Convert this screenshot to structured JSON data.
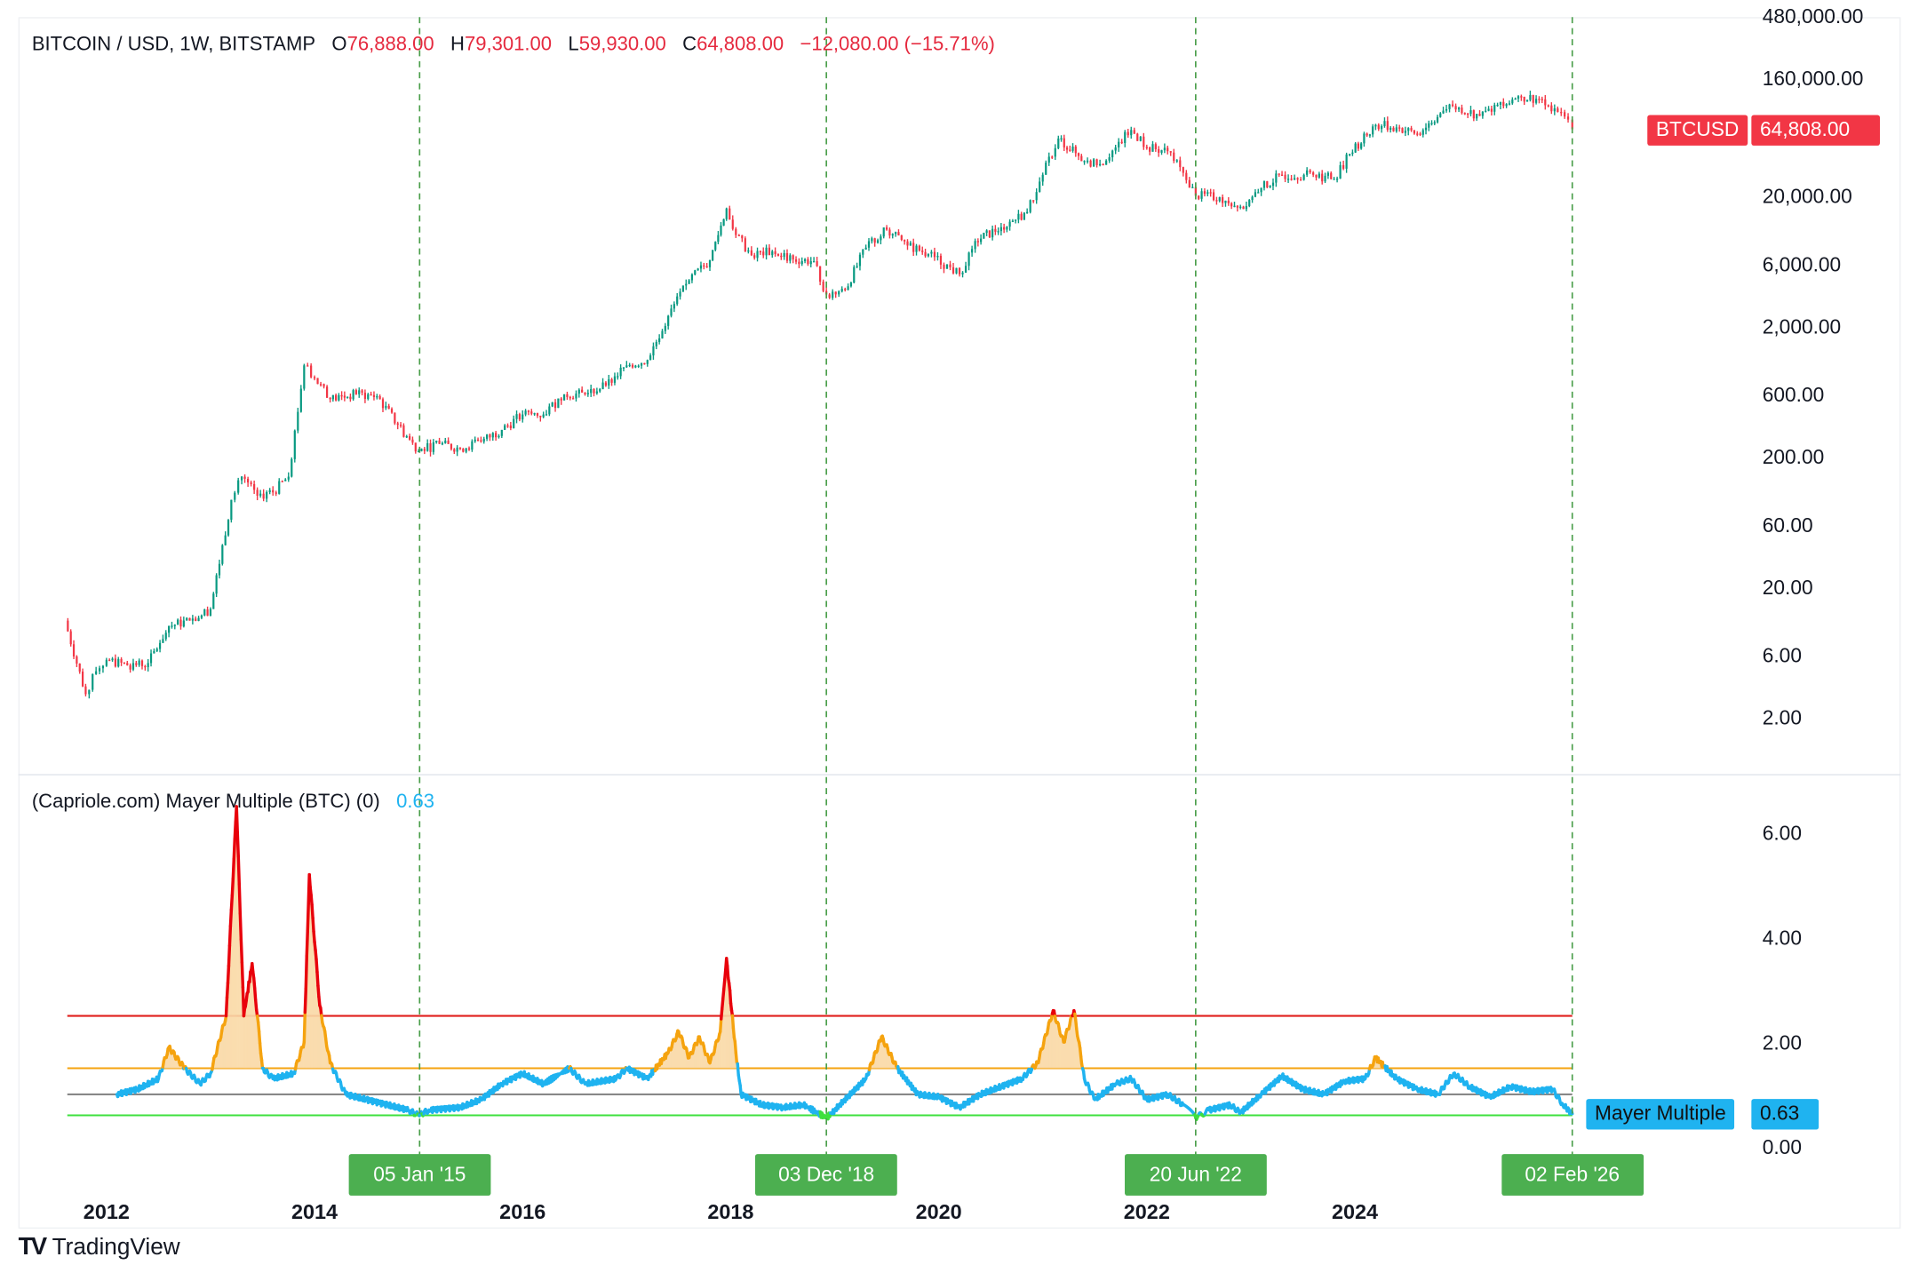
{
  "header": {
    "symbol": "BITCOIN / USD, 1W, BITSTAMP",
    "o_label": "O",
    "open": "76,888.00",
    "h_label": "H",
    "high": "79,301.00",
    "l_label": "L",
    "low": "59,930.00",
    "c_label": "C",
    "close": "64,808.00",
    "change": "−12,080.00 (−15.71%)"
  },
  "price_label": {
    "name": "BTCUSD",
    "value": "64,808.00",
    "color": "#f23645"
  },
  "indicator": {
    "title": "(Capriole.com) Mayer Multiple (BTC) (0)",
    "value": "0.63",
    "label_name": "Mayer Multiple",
    "label_value": "0.63",
    "color": "#1fb3f0"
  },
  "brand": "TradingView",
  "colors": {
    "up": "#089981",
    "down": "#f23645",
    "mm_normal": "#1fb3f0",
    "mm_orange": "#f5a30f",
    "mm_red": "#e8000b",
    "mm_green": "#3ee03e",
    "vline": "#4a9e4a",
    "tag": "#4caf50"
  },
  "chart_data": [
    {
      "type": "candlestick",
      "scale": "log",
      "x_ticks": [
        "2012",
        "2014",
        "2016",
        "2018",
        "2020",
        "2022",
        "2024"
      ],
      "y_ticks": [
        "480,000.00",
        "160,000.00",
        "20,000.00",
        "6,000.00",
        "2,000.00",
        "600.00",
        "200.00",
        "60.00",
        "20.00",
        "6.00",
        "2.00"
      ],
      "y_tick_values": [
        480000,
        160000,
        20000,
        6000,
        2000,
        600,
        200,
        60,
        20,
        6,
        2
      ],
      "approx_closes": [
        [
          2011.6,
          11
        ],
        [
          2011.8,
          3
        ],
        [
          2011.9,
          4.5
        ],
        [
          2012.0,
          5.5
        ],
        [
          2012.2,
          5
        ],
        [
          2012.4,
          5.2
        ],
        [
          2012.6,
          10
        ],
        [
          2012.8,
          11
        ],
        [
          2013.0,
          13.5
        ],
        [
          2013.2,
          93
        ],
        [
          2013.3,
          140
        ],
        [
          2013.45,
          100
        ],
        [
          2013.6,
          106
        ],
        [
          2013.75,
          140
        ],
        [
          2013.9,
          1000
        ],
        [
          2014.0,
          800
        ],
        [
          2014.15,
          550
        ],
        [
          2014.4,
          600
        ],
        [
          2014.6,
          580
        ],
        [
          2014.8,
          350
        ],
        [
          2015.0,
          220
        ],
        [
          2015.2,
          250
        ],
        [
          2015.4,
          230
        ],
        [
          2015.6,
          260
        ],
        [
          2015.8,
          320
        ],
        [
          2016.0,
          420
        ],
        [
          2016.2,
          420
        ],
        [
          2016.4,
          600
        ],
        [
          2016.6,
          600
        ],
        [
          2016.8,
          700
        ],
        [
          2017.0,
          1000
        ],
        [
          2017.2,
          1100
        ],
        [
          2017.4,
          2400
        ],
        [
          2017.6,
          4500
        ],
        [
          2017.8,
          6400
        ],
        [
          2017.96,
          16000
        ],
        [
          2018.05,
          10000
        ],
        [
          2018.2,
          7000
        ],
        [
          2018.4,
          7500
        ],
        [
          2018.6,
          6500
        ],
        [
          2018.8,
          6300
        ],
        [
          2018.92,
          3500
        ],
        [
          2019.1,
          3800
        ],
        [
          2019.3,
          8000
        ],
        [
          2019.5,
          11000
        ],
        [
          2019.7,
          8300
        ],
        [
          2019.9,
          7200
        ],
        [
          2020.2,
          5000
        ],
        [
          2020.35,
          9000
        ],
        [
          2020.6,
          11500
        ],
        [
          2020.85,
          15000
        ],
        [
          2021.0,
          29000
        ],
        [
          2021.15,
          55000
        ],
        [
          2021.4,
          37000
        ],
        [
          2021.55,
          35000
        ],
        [
          2021.7,
          47000
        ],
        [
          2021.85,
          64000
        ],
        [
          2022.0,
          47000
        ],
        [
          2022.2,
          44000
        ],
        [
          2022.35,
          30000
        ],
        [
          2022.47,
          20000
        ],
        [
          2022.7,
          19500
        ],
        [
          2022.9,
          16500
        ],
        [
          2023.1,
          23000
        ],
        [
          2023.3,
          29000
        ],
        [
          2023.6,
          29000
        ],
        [
          2023.8,
          27000
        ],
        [
          2023.95,
          42000
        ],
        [
          2024.2,
          70000
        ],
        [
          2024.4,
          67000
        ],
        [
          2024.6,
          60000
        ],
        [
          2024.85,
          90000
        ],
        [
          2025.0,
          95000
        ],
        [
          2025.2,
          82000
        ],
        [
          2025.4,
          105000
        ],
        [
          2025.6,
          115000
        ],
        [
          2025.8,
          110000
        ],
        [
          2025.95,
          88000
        ],
        [
          2026.05,
          76888
        ],
        [
          2026.09,
          64808
        ]
      ]
    },
    {
      "type": "line",
      "title": "(Capriole.com) Mayer Multiple (BTC) (0)",
      "y_ticks": [
        "6.00",
        "4.00",
        "2.00",
        "0.00"
      ],
      "y_tick_values": [
        6,
        4,
        2,
        0
      ],
      "ylim": [
        0,
        6.6
      ],
      "thresholds": [
        {
          "value": 2.5,
          "color": "#e0201e"
        },
        {
          "value": 1.5,
          "color": "#f5a30f"
        },
        {
          "value": 1.0,
          "color": "#888888"
        },
        {
          "value": 0.6,
          "color": "#3ee03e"
        }
      ],
      "points": [
        [
          2012.1,
          1.0
        ],
        [
          2012.3,
          1.1
        ],
        [
          2012.5,
          1.3
        ],
        [
          2012.6,
          1.9
        ],
        [
          2012.75,
          1.5
        ],
        [
          2012.9,
          1.2
        ],
        [
          2013.0,
          1.4
        ],
        [
          2013.15,
          2.5
        ],
        [
          2013.25,
          6.5
        ],
        [
          2013.32,
          2.5
        ],
        [
          2013.4,
          3.5
        ],
        [
          2013.5,
          1.5
        ],
        [
          2013.6,
          1.3
        ],
        [
          2013.8,
          1.4
        ],
        [
          2013.9,
          2.0
        ],
        [
          2013.95,
          5.2
        ],
        [
          2014.05,
          2.7
        ],
        [
          2014.15,
          1.6
        ],
        [
          2014.3,
          1.0
        ],
        [
          2014.5,
          0.9
        ],
        [
          2014.7,
          0.8
        ],
        [
          2014.9,
          0.7
        ],
        [
          2015.0,
          0.6
        ],
        [
          2015.1,
          0.7
        ],
        [
          2015.4,
          0.75
        ],
        [
          2015.6,
          0.9
        ],
        [
          2015.8,
          1.2
        ],
        [
          2016.0,
          1.4
        ],
        [
          2016.2,
          1.2
        ],
        [
          2016.45,
          1.5
        ],
        [
          2016.6,
          1.2
        ],
        [
          2016.9,
          1.3
        ],
        [
          2017.0,
          1.5
        ],
        [
          2017.2,
          1.3
        ],
        [
          2017.4,
          1.8
        ],
        [
          2017.5,
          2.2
        ],
        [
          2017.6,
          1.7
        ],
        [
          2017.7,
          2.1
        ],
        [
          2017.8,
          1.6
        ],
        [
          2017.9,
          2.2
        ],
        [
          2017.96,
          3.6
        ],
        [
          2018.05,
          1.8
        ],
        [
          2018.1,
          1.0
        ],
        [
          2018.3,
          0.8
        ],
        [
          2018.5,
          0.75
        ],
        [
          2018.7,
          0.8
        ],
        [
          2018.92,
          0.55
        ],
        [
          2019.0,
          0.7
        ],
        [
          2019.3,
          1.3
        ],
        [
          2019.45,
          2.1
        ],
        [
          2019.6,
          1.5
        ],
        [
          2019.8,
          1.0
        ],
        [
          2020.0,
          0.95
        ],
        [
          2020.2,
          0.75
        ],
        [
          2020.4,
          1.0
        ],
        [
          2020.6,
          1.15
        ],
        [
          2020.8,
          1.3
        ],
        [
          2020.95,
          1.6
        ],
        [
          2021.1,
          2.6
        ],
        [
          2021.2,
          2.0
        ],
        [
          2021.3,
          2.6
        ],
        [
          2021.4,
          1.3
        ],
        [
          2021.5,
          0.9
        ],
        [
          2021.7,
          1.2
        ],
        [
          2021.85,
          1.3
        ],
        [
          2022.0,
          0.9
        ],
        [
          2022.2,
          1.0
        ],
        [
          2022.35,
          0.8
        ],
        [
          2022.47,
          0.55
        ],
        [
          2022.6,
          0.7
        ],
        [
          2022.8,
          0.8
        ],
        [
          2022.9,
          0.65
        ],
        [
          2023.1,
          1.0
        ],
        [
          2023.3,
          1.35
        ],
        [
          2023.5,
          1.1
        ],
        [
          2023.7,
          1.0
        ],
        [
          2023.9,
          1.25
        ],
        [
          2024.1,
          1.3
        ],
        [
          2024.2,
          1.7
        ],
        [
          2024.4,
          1.3
        ],
        [
          2024.6,
          1.1
        ],
        [
          2024.8,
          1.0
        ],
        [
          2024.95,
          1.4
        ],
        [
          2025.1,
          1.15
        ],
        [
          2025.3,
          0.95
        ],
        [
          2025.5,
          1.15
        ],
        [
          2025.7,
          1.05
        ],
        [
          2025.9,
          1.1
        ],
        [
          2026.0,
          0.8
        ],
        [
          2026.09,
          0.63
        ]
      ]
    }
  ],
  "markers": [
    {
      "label": "05 Jan '15",
      "year": 2015.01
    },
    {
      "label": "03 Dec '18",
      "year": 2018.92
    },
    {
      "label": "20 Jun '22",
      "year": 2022.47
    },
    {
      "label": "02 Feb '26",
      "year": 2026.09
    }
  ]
}
